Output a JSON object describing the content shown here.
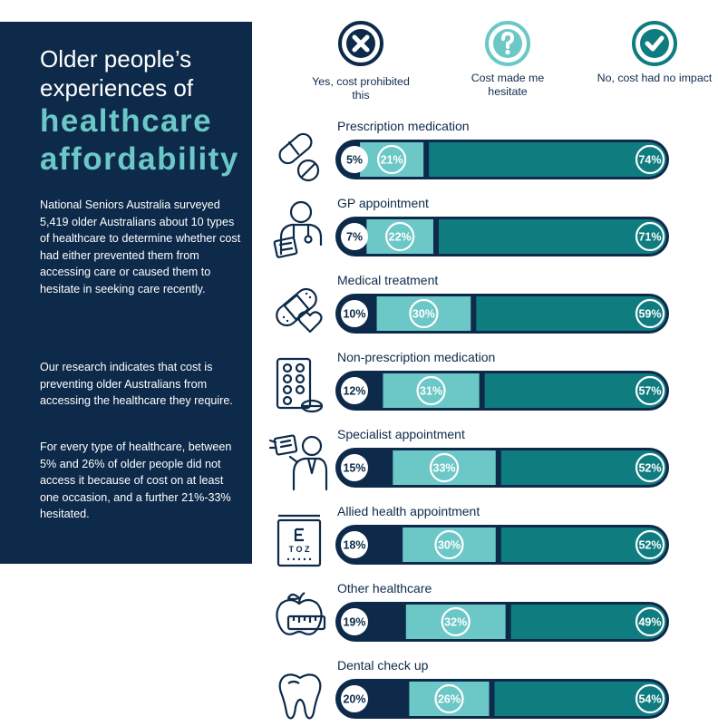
{
  "title": {
    "line1": "Older people’s",
    "line2": "experiences of",
    "line3": "healthcare",
    "line4": "affordability"
  },
  "intro": {
    "paragraph1": "National Seniors Australia surveyed 5,419 older Australians about 10 types of healthcare to determine whether cost had either prevented them from accessing care or caused them to hesitate in seeking care recently.",
    "paragraph2": "Our research indicates that cost is preventing older Australians from accessing the healthcare they require.",
    "paragraph3": "For every type of healthcare, between 5% and 26% of older people did not access it because of cost on at least one occasion, and a further 21%-33% hesitated."
  },
  "colors": {
    "navy": "#0d2a4a",
    "light_teal": "#6cc7c7",
    "dark_teal": "#0f7c80",
    "white": "#ffffff"
  },
  "chart_data": {
    "type": "bar",
    "orientation": "horizontal",
    "stacked": true,
    "unit": "%",
    "xlim": [
      0,
      100
    ],
    "categories": [
      "Prescription medication",
      "GP appointment",
      "Medical treatment",
      "Non-prescription medication",
      "Specialist appointment",
      "Allied health appointment",
      "Other healthcare",
      "Dental check up"
    ],
    "category_icons": [
      "pills-icon",
      "doctor-icon",
      "bandage-heart-icon",
      "blister-pack-icon",
      "specialist-icon",
      "eye-chart-icon",
      "apple-tape-icon",
      "tooth-icon"
    ],
    "series": [
      {
        "name": "Yes, cost prohibited this",
        "icon": "cross-icon",
        "color": "#0d2a4a",
        "values": [
          5,
          7,
          10,
          12,
          15,
          18,
          19,
          20
        ]
      },
      {
        "name": "Cost made me hesitate",
        "icon": "question-icon",
        "color": "#6cc7c7",
        "values": [
          21,
          22,
          30,
          31,
          33,
          30,
          32,
          26
        ]
      },
      {
        "name": "No, cost had no impact",
        "icon": "check-icon",
        "color": "#0f7c80",
        "values": [
          74,
          71,
          59,
          57,
          52,
          52,
          49,
          54
        ]
      }
    ],
    "legend_position": "top"
  }
}
